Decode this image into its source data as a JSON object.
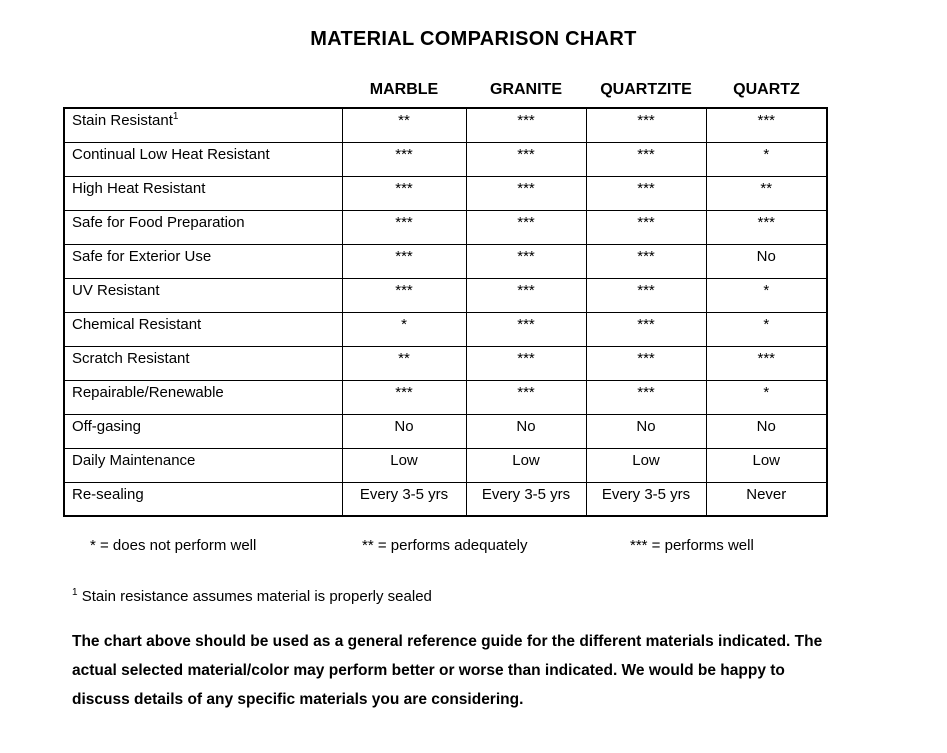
{
  "title": "MATERIAL COMPARISON CHART",
  "table": {
    "columns": [
      "MARBLE",
      "GRANITE",
      "QUARTZITE",
      "QUARTZ"
    ],
    "rows": [
      {
        "label": "Stain Resistant",
        "sup": "1",
        "values": [
          "**",
          "***",
          "***",
          "***"
        ]
      },
      {
        "label": "Continual Low Heat Resistant",
        "values": [
          "***",
          "***",
          "***",
          "*"
        ]
      },
      {
        "label": "High Heat Resistant",
        "values": [
          "***",
          "***",
          "***",
          "**"
        ]
      },
      {
        "label": "Safe for Food Preparation",
        "values": [
          "***",
          "***",
          "***",
          "***"
        ]
      },
      {
        "label": "Safe for Exterior Use",
        "values": [
          "***",
          "***",
          "***",
          "No"
        ]
      },
      {
        "label": "UV Resistant",
        "values": [
          "***",
          "***",
          "***",
          "*"
        ]
      },
      {
        "label": "Chemical Resistant",
        "values": [
          "*",
          "***",
          "***",
          "*"
        ]
      },
      {
        "label": "Scratch Resistant",
        "values": [
          "**",
          "***",
          "***",
          "***"
        ]
      },
      {
        "label": "Repairable/Renewable",
        "values": [
          "***",
          "***",
          "***",
          "*"
        ]
      },
      {
        "label": "Off-gasing",
        "values": [
          "No",
          "No",
          "No",
          "No"
        ]
      },
      {
        "label": "Daily Maintenance",
        "values": [
          "Low",
          "Low",
          "Low",
          "Low"
        ]
      },
      {
        "label": "Re-sealing",
        "values": [
          "Every 3-5 yrs",
          "Every 3-5 yrs",
          "Every 3-5 yrs",
          "Never"
        ]
      }
    ]
  },
  "legend": {
    "items": [
      "* = does not perform well",
      "** = performs adequately",
      "*** = performs well"
    ]
  },
  "footnote": {
    "marker": "1",
    "text": " Stain resistance assumes material is properly sealed"
  },
  "disclaimer": "The chart above should be used as a general reference guide for the different materials indicated. The actual selected material/color may perform better or worse than indicated. We would be happy to discuss details of any specific materials you are considering.",
  "colors": {
    "background": "#ffffff",
    "text": "#000000",
    "table_border": "#000000"
  }
}
